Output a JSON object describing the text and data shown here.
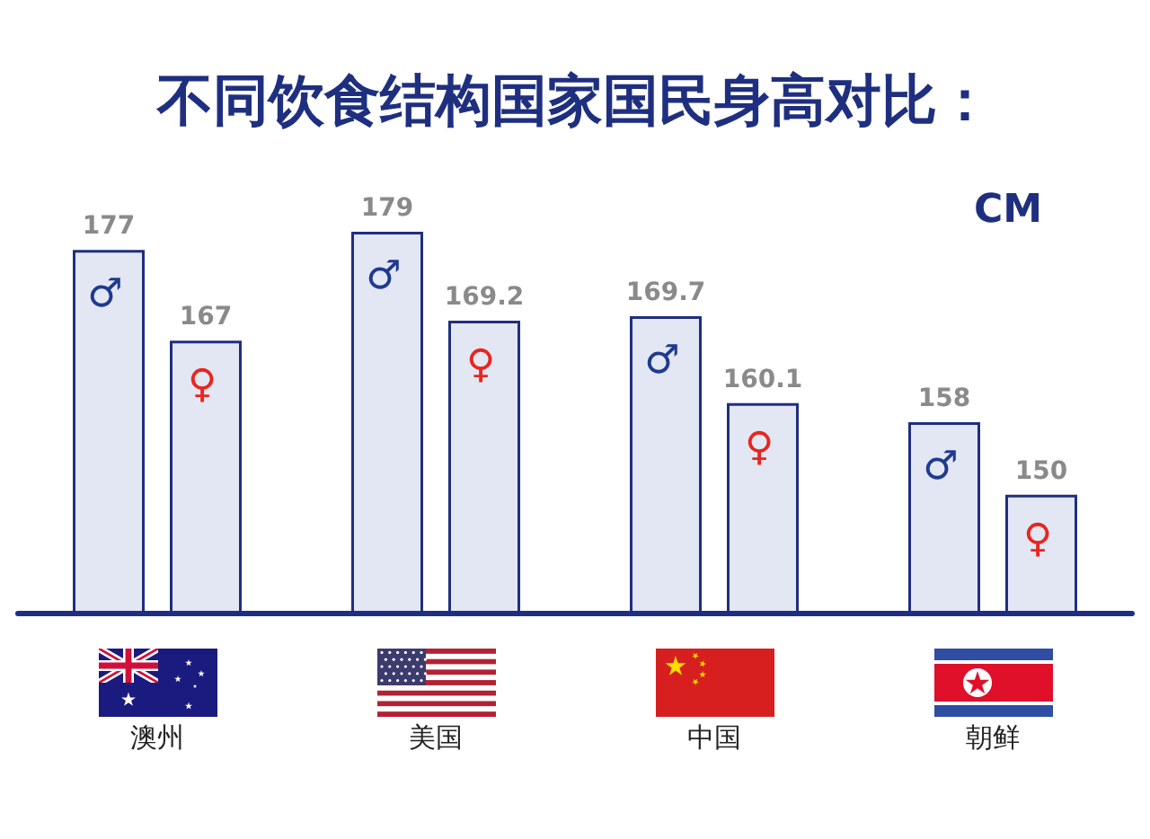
{
  "chart_data": {
    "type": "bar",
    "title": "不同饮食结构国家国民身高对比：",
    "ylabel": "CM",
    "categories": [
      "澳州",
      "美国",
      "中国",
      "朝鲜"
    ],
    "series": [
      {
        "name": "♂",
        "color": "#e3e7f4",
        "values": [
          177,
          179,
          169.7,
          158
        ]
      },
      {
        "name": "♀",
        "color": "#e3e7f4",
        "values": [
          167,
          169.2,
          160.1,
          150
        ]
      }
    ],
    "ylim": [
      137,
      179
    ],
    "tick_labels": "x",
    "data_labels": true
  }
}
